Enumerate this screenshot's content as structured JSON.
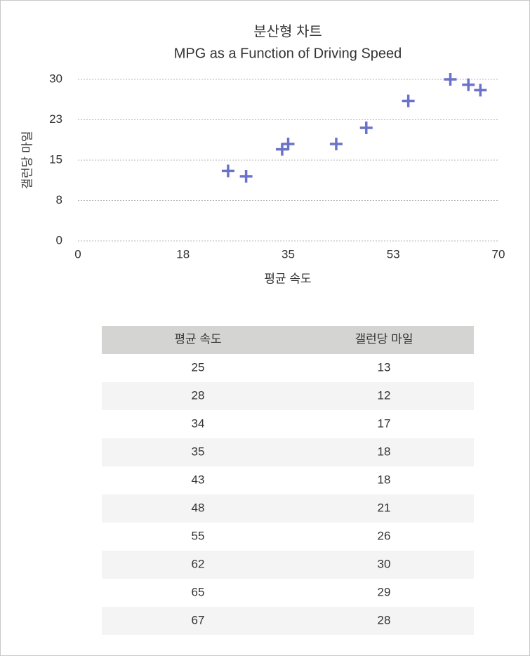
{
  "chart_data": {
    "type": "scatter",
    "title": "분산형 차트",
    "subtitle": "MPG as a Function of Driving Speed",
    "xlabel": "평균 속도",
    "ylabel": "갤런당 마일",
    "x": [
      25,
      28,
      34,
      35,
      43,
      48,
      55,
      62,
      65,
      67
    ],
    "values": [
      13,
      12,
      17,
      18,
      18,
      21,
      26,
      30,
      29,
      28
    ],
    "color": "#6b72c9",
    "xlim": [
      0,
      70
    ],
    "xticks": [
      0,
      {
        "value": 17.5,
        "label": "18"
      },
      35,
      {
        "value": 52.5,
        "label": "53"
      },
      70
    ],
    "ylim": [
      0,
      30
    ],
    "yticks": [
      0,
      {
        "value": 7.5,
        "label": "8"
      },
      15,
      {
        "value": 22.5,
        "label": "23"
      },
      30
    ],
    "grid": true
  }
}
